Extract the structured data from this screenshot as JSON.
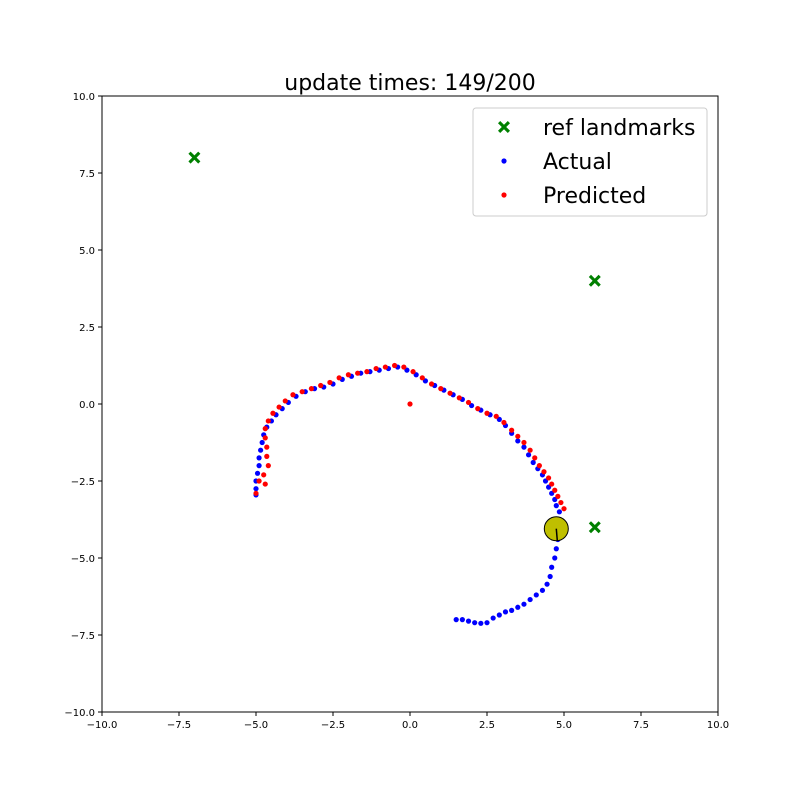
{
  "chart_data": {
    "type": "scatter",
    "title": "update times: 149/200",
    "xlabel": "",
    "ylabel": "",
    "xlim": [
      -10,
      10
    ],
    "ylim": [
      -10,
      10
    ],
    "xticks": [
      -10,
      -7.5,
      -5,
      -2.5,
      0,
      2.5,
      5,
      7.5,
      10
    ],
    "yticks": [
      -10,
      -7.5,
      -5,
      -2.5,
      0,
      2.5,
      5,
      7.5,
      10
    ],
    "xtick_labels": [
      "−10.0",
      "−7.5",
      "−5.0",
      "−2.5",
      "0.0",
      "2.5",
      "5.0",
      "7.5",
      "10.0"
    ],
    "ytick_labels": [
      "−10.0",
      "−7.5",
      "−5.0",
      "−2.5",
      "0.0",
      "2.5",
      "5.0",
      "7.5",
      "10.0"
    ],
    "grid": false,
    "legend_position": "upper-right",
    "series": [
      {
        "name": "ref landmarks",
        "marker": "x-filled",
        "color": "#008000",
        "points": [
          [
            -7,
            8
          ],
          [
            6,
            4
          ],
          [
            6,
            -4
          ]
        ]
      },
      {
        "name": "Actual",
        "marker": "dot",
        "color": "#0000ff",
        "points": [
          [
            1.5,
            -7.0
          ],
          [
            1.7,
            -7.0
          ],
          [
            1.9,
            -7.05
          ],
          [
            2.1,
            -7.1
          ],
          [
            2.3,
            -7.12
          ],
          [
            2.5,
            -7.1
          ],
          [
            2.7,
            -6.95
          ],
          [
            2.9,
            -6.85
          ],
          [
            3.1,
            -6.75
          ],
          [
            3.3,
            -6.7
          ],
          [
            3.5,
            -6.6
          ],
          [
            3.7,
            -6.5
          ],
          [
            3.9,
            -6.35
          ],
          [
            4.1,
            -6.2
          ],
          [
            4.3,
            -6.05
          ],
          [
            4.45,
            -5.85
          ],
          [
            4.55,
            -5.6
          ],
          [
            4.6,
            -5.3
          ],
          [
            4.7,
            -5.0
          ],
          [
            4.75,
            -4.7
          ],
          [
            4.8,
            -4.4
          ],
          [
            4.85,
            -4.1
          ],
          [
            4.9,
            -3.8
          ],
          [
            4.85,
            -3.5
          ],
          [
            4.75,
            -3.3
          ],
          [
            4.7,
            -3.1
          ],
          [
            4.6,
            -2.9
          ],
          [
            4.5,
            -2.7
          ],
          [
            4.4,
            -2.5
          ],
          [
            4.3,
            -2.3
          ],
          [
            4.15,
            -2.1
          ],
          [
            4.0,
            -1.9
          ],
          [
            3.85,
            -1.65
          ],
          [
            3.7,
            -1.4
          ],
          [
            3.5,
            -1.2
          ],
          [
            3.3,
            -0.95
          ],
          [
            3.1,
            -0.7
          ],
          [
            2.9,
            -0.5
          ],
          [
            2.6,
            -0.35
          ],
          [
            2.3,
            -0.2
          ],
          [
            2.0,
            -0.05
          ],
          [
            1.7,
            0.15
          ],
          [
            1.4,
            0.3
          ],
          [
            1.1,
            0.45
          ],
          [
            0.8,
            0.6
          ],
          [
            0.5,
            0.75
          ],
          [
            0.2,
            0.95
          ],
          [
            -0.1,
            1.1
          ],
          [
            -0.4,
            1.2
          ],
          [
            -0.7,
            1.15
          ],
          [
            -1.0,
            1.1
          ],
          [
            -1.3,
            1.05
          ],
          [
            -1.6,
            1.0
          ],
          [
            -1.9,
            0.9
          ],
          [
            -2.2,
            0.8
          ],
          [
            -2.5,
            0.65
          ],
          [
            -2.8,
            0.55
          ],
          [
            -3.1,
            0.5
          ],
          [
            -3.4,
            0.4
          ],
          [
            -3.7,
            0.25
          ],
          [
            -3.95,
            0.05
          ],
          [
            -4.15,
            -0.15
          ],
          [
            -4.35,
            -0.35
          ],
          [
            -4.5,
            -0.55
          ],
          [
            -4.65,
            -0.75
          ],
          [
            -4.75,
            -1.0
          ],
          [
            -4.8,
            -1.25
          ],
          [
            -4.85,
            -1.5
          ],
          [
            -4.9,
            -1.75
          ],
          [
            -4.9,
            -2.0
          ],
          [
            -4.95,
            -2.25
          ],
          [
            -5.0,
            -2.5
          ],
          [
            -5.0,
            -2.75
          ],
          [
            -5.0,
            -2.95
          ]
        ]
      },
      {
        "name": "Predicted",
        "marker": "dot",
        "color": "#ff0000",
        "points": [
          [
            5.0,
            -3.4
          ],
          [
            4.9,
            -3.2
          ],
          [
            4.8,
            -3.0
          ],
          [
            4.7,
            -2.8
          ],
          [
            4.6,
            -2.6
          ],
          [
            4.5,
            -2.4
          ],
          [
            4.35,
            -2.2
          ],
          [
            4.2,
            -2.0
          ],
          [
            4.05,
            -1.75
          ],
          [
            3.9,
            -1.5
          ],
          [
            3.7,
            -1.25
          ],
          [
            3.5,
            -1.05
          ],
          [
            3.3,
            -0.85
          ],
          [
            3.05,
            -0.6
          ],
          [
            2.8,
            -0.4
          ],
          [
            2.5,
            -0.3
          ],
          [
            2.2,
            -0.15
          ],
          [
            1.9,
            0.05
          ],
          [
            1.6,
            0.2
          ],
          [
            1.3,
            0.35
          ],
          [
            1.0,
            0.5
          ],
          [
            0.7,
            0.65
          ],
          [
            0.4,
            0.85
          ],
          [
            0.1,
            1.05
          ],
          [
            -0.2,
            1.2
          ],
          [
            -0.5,
            1.25
          ],
          [
            -0.8,
            1.2
          ],
          [
            -1.1,
            1.15
          ],
          [
            -1.4,
            1.05
          ],
          [
            -1.7,
            1.0
          ],
          [
            -2.0,
            0.95
          ],
          [
            -2.3,
            0.85
          ],
          [
            -2.6,
            0.7
          ],
          [
            -2.9,
            0.6
          ],
          [
            -3.2,
            0.5
          ],
          [
            -3.5,
            0.4
          ],
          [
            -3.8,
            0.3
          ],
          [
            -4.05,
            0.1
          ],
          [
            -4.25,
            -0.1
          ],
          [
            -4.45,
            -0.3
          ],
          [
            -4.6,
            -0.55
          ],
          [
            -4.7,
            -0.8
          ],
          [
            -4.7,
            -1.1
          ],
          [
            -4.65,
            -1.4
          ],
          [
            -4.65,
            -1.7
          ],
          [
            -4.6,
            -2.0
          ],
          [
            -4.75,
            -2.3
          ],
          [
            -4.9,
            -2.5
          ],
          [
            -4.7,
            -2.6
          ],
          [
            -5.0,
            -2.9
          ],
          [
            0.0,
            0.0
          ]
        ]
      }
    ],
    "annotations": {
      "robot": {
        "x": 4.75,
        "y": -4.05,
        "fill": "#bfbf00",
        "stroke": "#000000"
      }
    }
  }
}
